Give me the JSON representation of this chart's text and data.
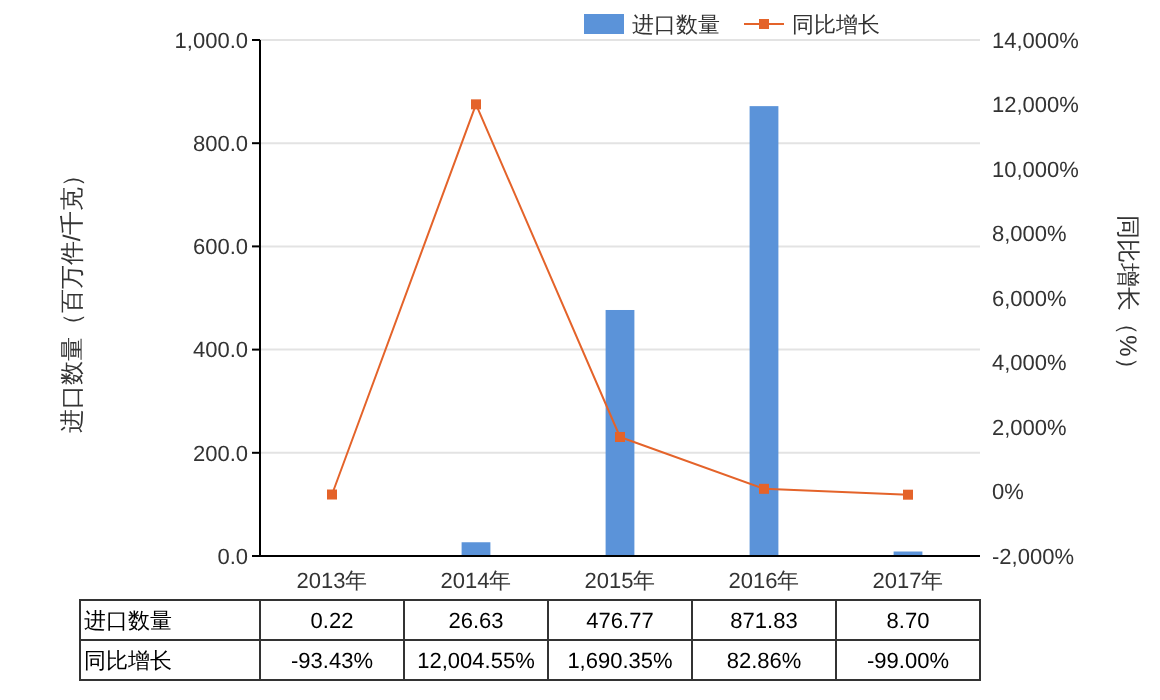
{
  "chart_data": {
    "type": "bar",
    "categories": [
      "2013年",
      "2014年",
      "2015年",
      "2016年",
      "2017年"
    ],
    "ylabel": "进口数量（百万件/千克）",
    "y2label": "同比增长（%）",
    "series": [
      {
        "name": "进口数量",
        "color": "#5b93d9",
        "values": [
          0.22,
          26.63,
          476.77,
          871.83,
          8.7
        ],
        "value_labels": [
          "0.22",
          "26.63",
          "476.77",
          "871.83",
          "8.70"
        ]
      },
      {
        "name": "同比增长",
        "type": "line",
        "axis": "y2",
        "color": "#e4632a",
        "marker": "square",
        "values": [
          -93.43,
          12004.55,
          1690.35,
          82.86,
          -99.0
        ],
        "value_labels": [
          "-93.43%",
          "12,004.55%",
          "1,690.35%",
          "82.86%",
          "-99.00%"
        ]
      }
    ],
    "ylim": [
      0,
      1000
    ],
    "yticks": [
      {
        "value": 0,
        "label": "0.0"
      },
      {
        "value": 200,
        "label": "200.0"
      },
      {
        "value": 400,
        "label": "400.0"
      },
      {
        "value": 600,
        "label": "600.0"
      },
      {
        "value": 800,
        "label": "800.0"
      },
      {
        "value": 1000,
        "label": "1,000.0"
      }
    ],
    "y2lim": [
      -2000,
      14000
    ],
    "y2ticks": [
      {
        "value": -2000,
        "label": "-2,000%"
      },
      {
        "value": 0,
        "label": "0%"
      },
      {
        "value": 2000,
        "label": "2,000%"
      },
      {
        "value": 4000,
        "label": "4,000%"
      },
      {
        "value": 6000,
        "label": "6,000%"
      },
      {
        "value": 8000,
        "label": "8,000%"
      },
      {
        "value": 10000,
        "label": "10,000%"
      },
      {
        "value": 12000,
        "label": "12,000%"
      },
      {
        "value": 14000,
        "label": "14,000%"
      }
    ],
    "grid": "y",
    "legend": "top right"
  }
}
